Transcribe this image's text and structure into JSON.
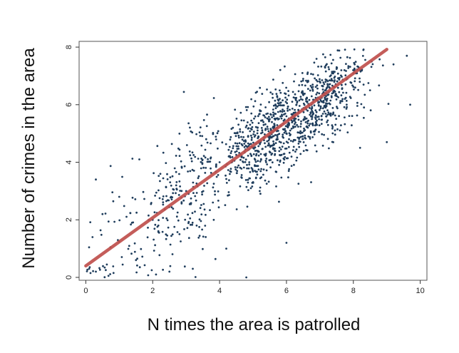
{
  "chart_data": {
    "type": "scatter",
    "title": "",
    "xlabel": "N times the area is patrolled",
    "ylabel": "Number of crimes in the area",
    "xlim": [
      -0.2,
      10.2
    ],
    "ylim": [
      -0.1,
      8.2
    ],
    "x_ticks": [
      "0",
      "2",
      "4",
      "6",
      "8",
      "10"
    ],
    "y_ticks": [
      "0",
      "2",
      "4",
      "6",
      "8"
    ],
    "grid": false,
    "legend": "none",
    "n_points": 1350,
    "series": [
      {
        "type": "scatter",
        "color": "#1f3d5c",
        "description_of_spread": "dense positive cloud, heaviest between x=4 and x=8",
        "points_sample": [
          [
            0.1,
            0.3
          ],
          [
            0.3,
            0.2
          ],
          [
            0.2,
            1.4
          ],
          [
            0.3,
            3.4
          ],
          [
            0.5,
            2.2
          ],
          [
            1.0,
            2.8
          ],
          [
            1.5,
            0.6
          ],
          [
            1.6,
            4.1
          ],
          [
            2.0,
            2.0
          ],
          [
            2.5,
            0.2
          ],
          [
            2.8,
            1.5
          ],
          [
            3.0,
            3.0
          ],
          [
            3.2,
            0.3
          ],
          [
            3.6,
            4.8
          ],
          [
            3.8,
            2.6
          ],
          [
            4.0,
            4.0
          ],
          [
            4.2,
            1.0
          ],
          [
            4.4,
            5.2
          ],
          [
            4.8,
            0.0
          ],
          [
            5.0,
            4.5
          ],
          [
            5.2,
            3.0
          ],
          [
            5.5,
            5.5
          ],
          [
            5.8,
            6.2
          ],
          [
            6.0,
            1.2
          ],
          [
            6.0,
            5.0
          ],
          [
            6.3,
            6.0
          ],
          [
            6.5,
            6.9
          ],
          [
            6.8,
            5.7
          ],
          [
            7.0,
            6.8
          ],
          [
            7.2,
            6.4
          ],
          [
            7.5,
            7.3
          ],
          [
            7.8,
            6.0
          ],
          [
            8.0,
            7.1
          ],
          [
            8.2,
            4.5
          ],
          [
            8.3,
            7.9
          ],
          [
            8.5,
            6.5
          ],
          [
            9.0,
            4.7
          ],
          [
            9.2,
            7.4
          ],
          [
            9.6,
            7.7
          ],
          [
            9.7,
            6.0
          ]
        ]
      },
      {
        "type": "line",
        "name": "",
        "color": "#c0504d",
        "fit": {
          "intercept": 0.4,
          "slope": 0.835
        },
        "x": [
          0,
          9.0
        ],
        "y": [
          0.4,
          7.92
        ]
      }
    ]
  },
  "axes": {
    "xlabel": "N times the area is patrolled",
    "ylabel": "Number of crimes in the area"
  }
}
